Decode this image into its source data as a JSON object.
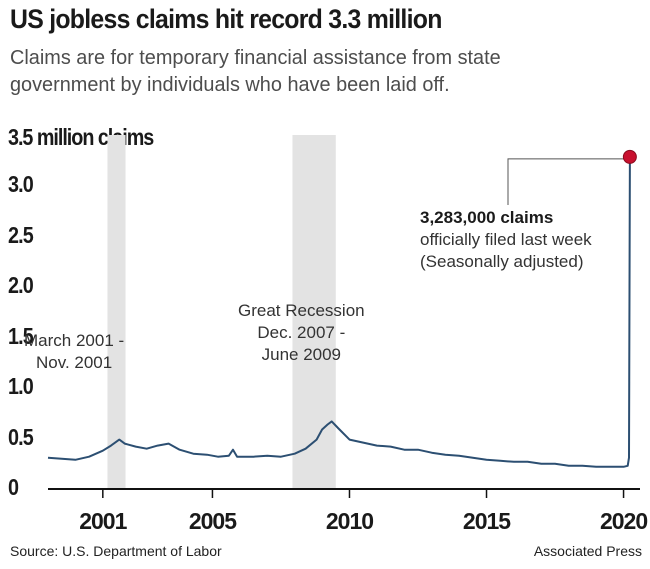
{
  "chart_data": {
    "type": "line",
    "title": "US jobless claims hit record 3.3 million",
    "subtitle": "Claims are for temporary financial assistance from state government by individuals who have been laid off.",
    "ylabel": "3.5 million claims",
    "ylim": [
      0,
      3.5
    ],
    "yticks": [
      "0",
      "0.5",
      "1.0",
      "1.5",
      "2.0",
      "2.5",
      "3.0"
    ],
    "xlim": [
      1999.0,
      2020.6
    ],
    "xticks": [
      {
        "label": "2001",
        "x": 2001
      },
      {
        "label": "2005",
        "x": 2005
      },
      {
        "label": "2010",
        "x": 2010
      },
      {
        "label": "2015",
        "x": 2015
      },
      {
        "label": "2020",
        "x": 2020
      }
    ],
    "recessions": [
      {
        "label": "March 2001 - Nov. 2001",
        "start": 2001.17,
        "end": 2001.83
      },
      {
        "label": "Great Recession Dec. 2007 - June 2009",
        "start": 2007.92,
        "end": 2009.5
      }
    ],
    "series": [
      {
        "color": "#2c4f72",
        "x": [
          1999.0,
          1999.5,
          2000.0,
          2000.5,
          2001.0,
          2001.3,
          2001.6,
          2001.8,
          2002.2,
          2002.6,
          2003.0,
          2003.4,
          2003.8,
          2004.3,
          2004.8,
          2005.2,
          2005.6,
          2005.75,
          2005.9,
          2006.5,
          2007.0,
          2007.5,
          2008.0,
          2008.4,
          2008.8,
          2009.0,
          2009.2,
          2009.35,
          2009.6,
          2010.0,
          2010.5,
          2011.0,
          2011.5,
          2012.0,
          2012.5,
          2013.0,
          2013.5,
          2014.0,
          2014.5,
          2015.0,
          2015.5,
          2016.0,
          2016.5,
          2017.0,
          2017.5,
          2018.0,
          2018.5,
          2019.0,
          2019.5,
          2020.0,
          2020.15,
          2020.2,
          2020.23
        ],
        "values": [
          0.3,
          0.29,
          0.28,
          0.31,
          0.37,
          0.42,
          0.48,
          0.44,
          0.41,
          0.39,
          0.42,
          0.44,
          0.38,
          0.34,
          0.33,
          0.31,
          0.32,
          0.38,
          0.31,
          0.31,
          0.32,
          0.31,
          0.34,
          0.39,
          0.48,
          0.58,
          0.63,
          0.66,
          0.59,
          0.48,
          0.45,
          0.42,
          0.41,
          0.38,
          0.38,
          0.35,
          0.33,
          0.32,
          0.3,
          0.28,
          0.27,
          0.26,
          0.26,
          0.24,
          0.24,
          0.22,
          0.22,
          0.21,
          0.21,
          0.21,
          0.22,
          0.3,
          3.283
        ]
      }
    ],
    "highlight": {
      "x": 2020.23,
      "value": 3.283
    }
  },
  "labels": {
    "recession1": [
      "March 2001 -",
      "Nov. 2001"
    ],
    "recession2": [
      "Great Recession",
      "Dec. 2007 -",
      "June 2009"
    ],
    "highlight_count": "3,283,000 claims",
    "highlight_desc": [
      "officially filed last week",
      "(Seasonally adjusted)"
    ]
  },
  "footer": {
    "source": "Source: U.S. Department of Labor",
    "credit": "Associated Press"
  }
}
